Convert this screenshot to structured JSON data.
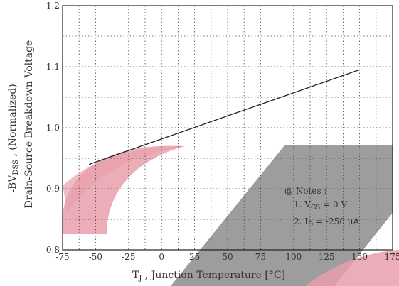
{
  "chart_data": {
    "type": "line",
    "xlabel": {
      "pre": "T",
      "sub": "J",
      "post": " , Junction Temperature  [",
      "unit": "°C",
      "close": "]"
    },
    "ylabel": {
      "line1_pre": "-BV",
      "line1_sub": "DSS",
      "line1_post": " ,  (Normalized)",
      "line2": "Drain-Source Breakdown Voltage"
    },
    "xlim": [
      -75,
      175
    ],
    "ylim": [
      0.8,
      1.2
    ],
    "x_ticks": [
      -75,
      -50,
      -25,
      0,
      25,
      50,
      75,
      100,
      125,
      150,
      175
    ],
    "x_tick_labels": [
      "-75",
      "-50",
      "-25",
      "0",
      "25",
      "50",
      "75",
      "100",
      "125",
      "150",
      "175"
    ],
    "y_ticks": [
      0.8,
      0.9,
      1.0,
      1.1,
      1.2
    ],
    "y_tick_labels": [
      "0.8",
      "0.9",
      "1.0",
      "1.1",
      "1.2"
    ],
    "x_minor_step": 12.5,
    "y_minor_step": 0.05,
    "grid": true,
    "series": [
      {
        "x": [
          -55,
          150
        ],
        "y": [
          0.94,
          1.095
        ],
        "color": "#222222"
      }
    ],
    "notes": {
      "title": "@ Notes :",
      "items": [
        {
          "pre": "1. V",
          "sub": "GS",
          "post": " = 0 V"
        },
        {
          "pre": "2. I",
          "sub": "D",
          "post": " = -250 μA"
        }
      ]
    },
    "watermark_colors": {
      "pink": "#e8a0ac",
      "gray": "#8c8c8c"
    }
  }
}
